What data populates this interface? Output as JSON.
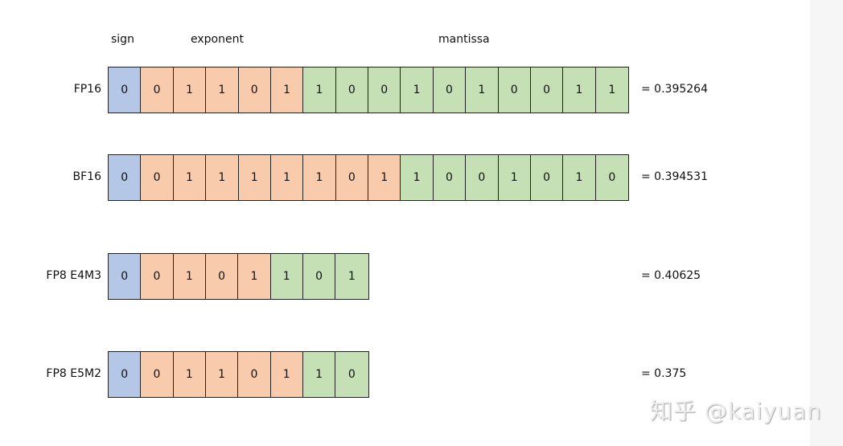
{
  "colors": {
    "sign": "#b4c7e7",
    "exponent": "#f8cbad",
    "mantissa": "#c5e0b4"
  },
  "headers": {
    "sign": "sign",
    "exponent": "exponent",
    "mantissa": "mantissa"
  },
  "rows": [
    {
      "label": "FP16",
      "sign": "0",
      "exponent": [
        "0",
        "1",
        "1",
        "0",
        "1"
      ],
      "mantissa": [
        "1",
        "0",
        "0",
        "1",
        "0",
        "1",
        "0",
        "0",
        "1",
        "1"
      ],
      "value": "= 0.395264"
    },
    {
      "label": "BF16",
      "sign": "0",
      "exponent": [
        "0",
        "1",
        "1",
        "1",
        "1",
        "1",
        "0",
        "1"
      ],
      "mantissa": [
        "1",
        "0",
        "0",
        "1",
        "0",
        "1",
        "0"
      ],
      "value": "= 0.394531"
    },
    {
      "label": "FP8 E4M3",
      "sign": "0",
      "exponent": [
        "0",
        "1",
        "0",
        "1"
      ],
      "mantissa": [
        "1",
        "0",
        "1"
      ],
      "value": "= 0.40625"
    },
    {
      "label": "FP8 E5M2",
      "sign": "0",
      "exponent": [
        "0",
        "1",
        "1",
        "0",
        "1"
      ],
      "mantissa": [
        "1",
        "0"
      ],
      "value": "= 0.375"
    }
  ],
  "watermark": "知乎 @kaiyuan"
}
